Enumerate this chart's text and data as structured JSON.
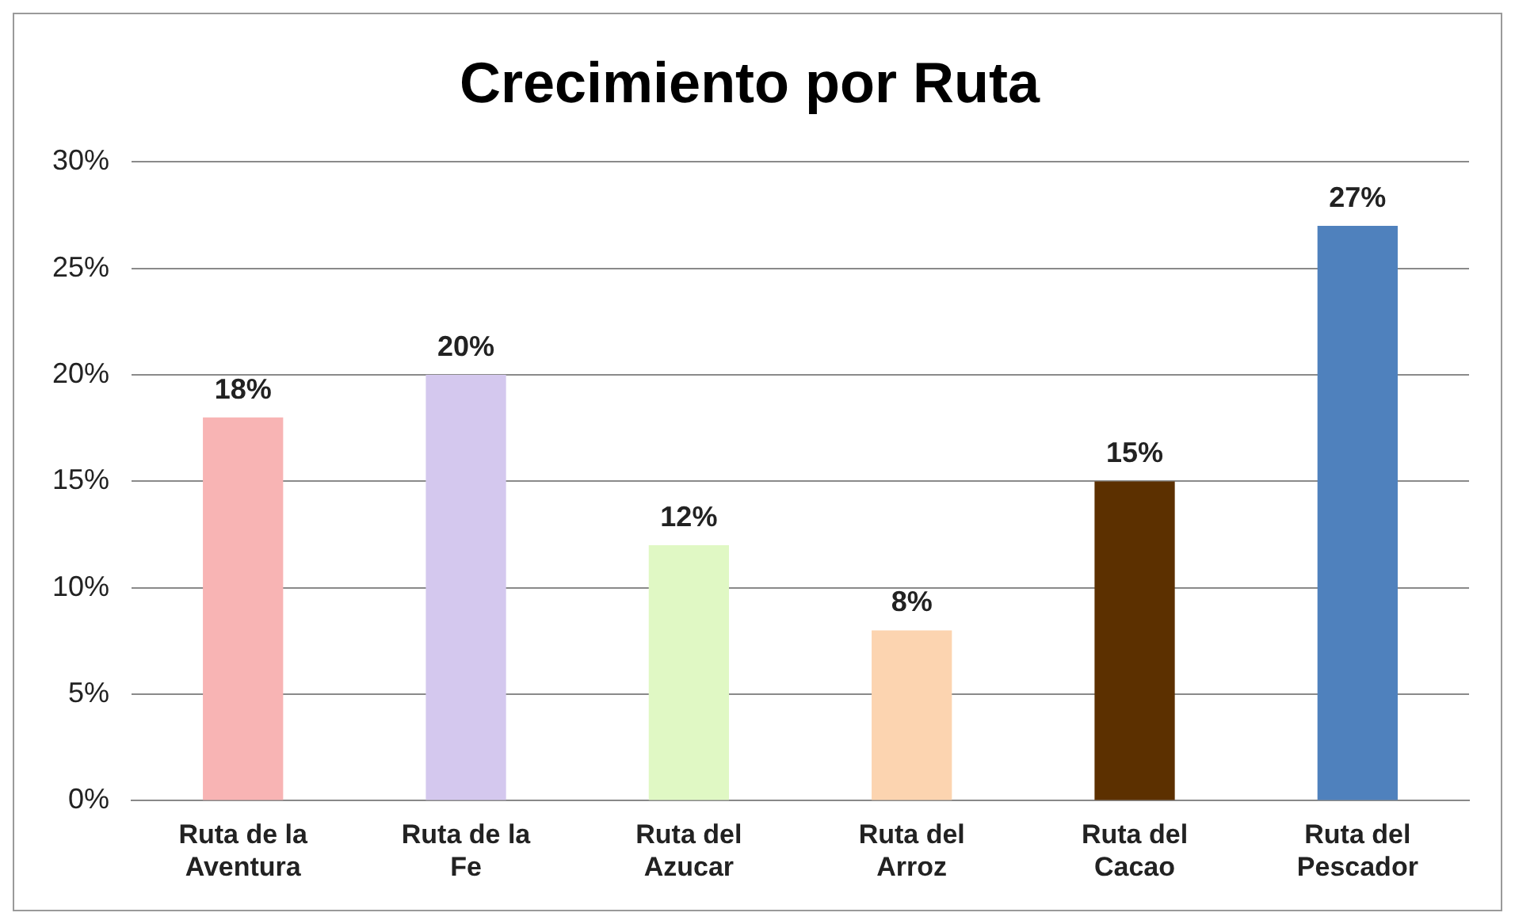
{
  "chart_data": {
    "type": "bar",
    "title": "Crecimiento por Ruta",
    "categories": [
      "Ruta de la Aventura",
      "Ruta de la Fe",
      "Ruta del Azucar",
      "Ruta del Arroz",
      "Ruta del Cacao",
      "Ruta del Pescador"
    ],
    "values": [
      18,
      20,
      12,
      8,
      15,
      27
    ],
    "colors": [
      "#f8b4b4",
      "#d4c8ee",
      "#e0f8c4",
      "#fcd4b0",
      "#5c3000",
      "#4f81bd"
    ],
    "value_labels": [
      "18%",
      "20%",
      "12%",
      "8%",
      "15%",
      "27%"
    ],
    "ylim": [
      0,
      30
    ],
    "yticks": [
      {
        "value": 0,
        "label": "0%"
      },
      {
        "value": 5,
        "label": "5%"
      },
      {
        "value": 10,
        "label": "10%"
      },
      {
        "value": 15,
        "label": "15%"
      },
      {
        "value": 20,
        "label": "20%"
      },
      {
        "value": 25,
        "label": "25%"
      },
      {
        "value": 30,
        "label": "30%"
      }
    ],
    "grid": "y",
    "legend": false
  }
}
